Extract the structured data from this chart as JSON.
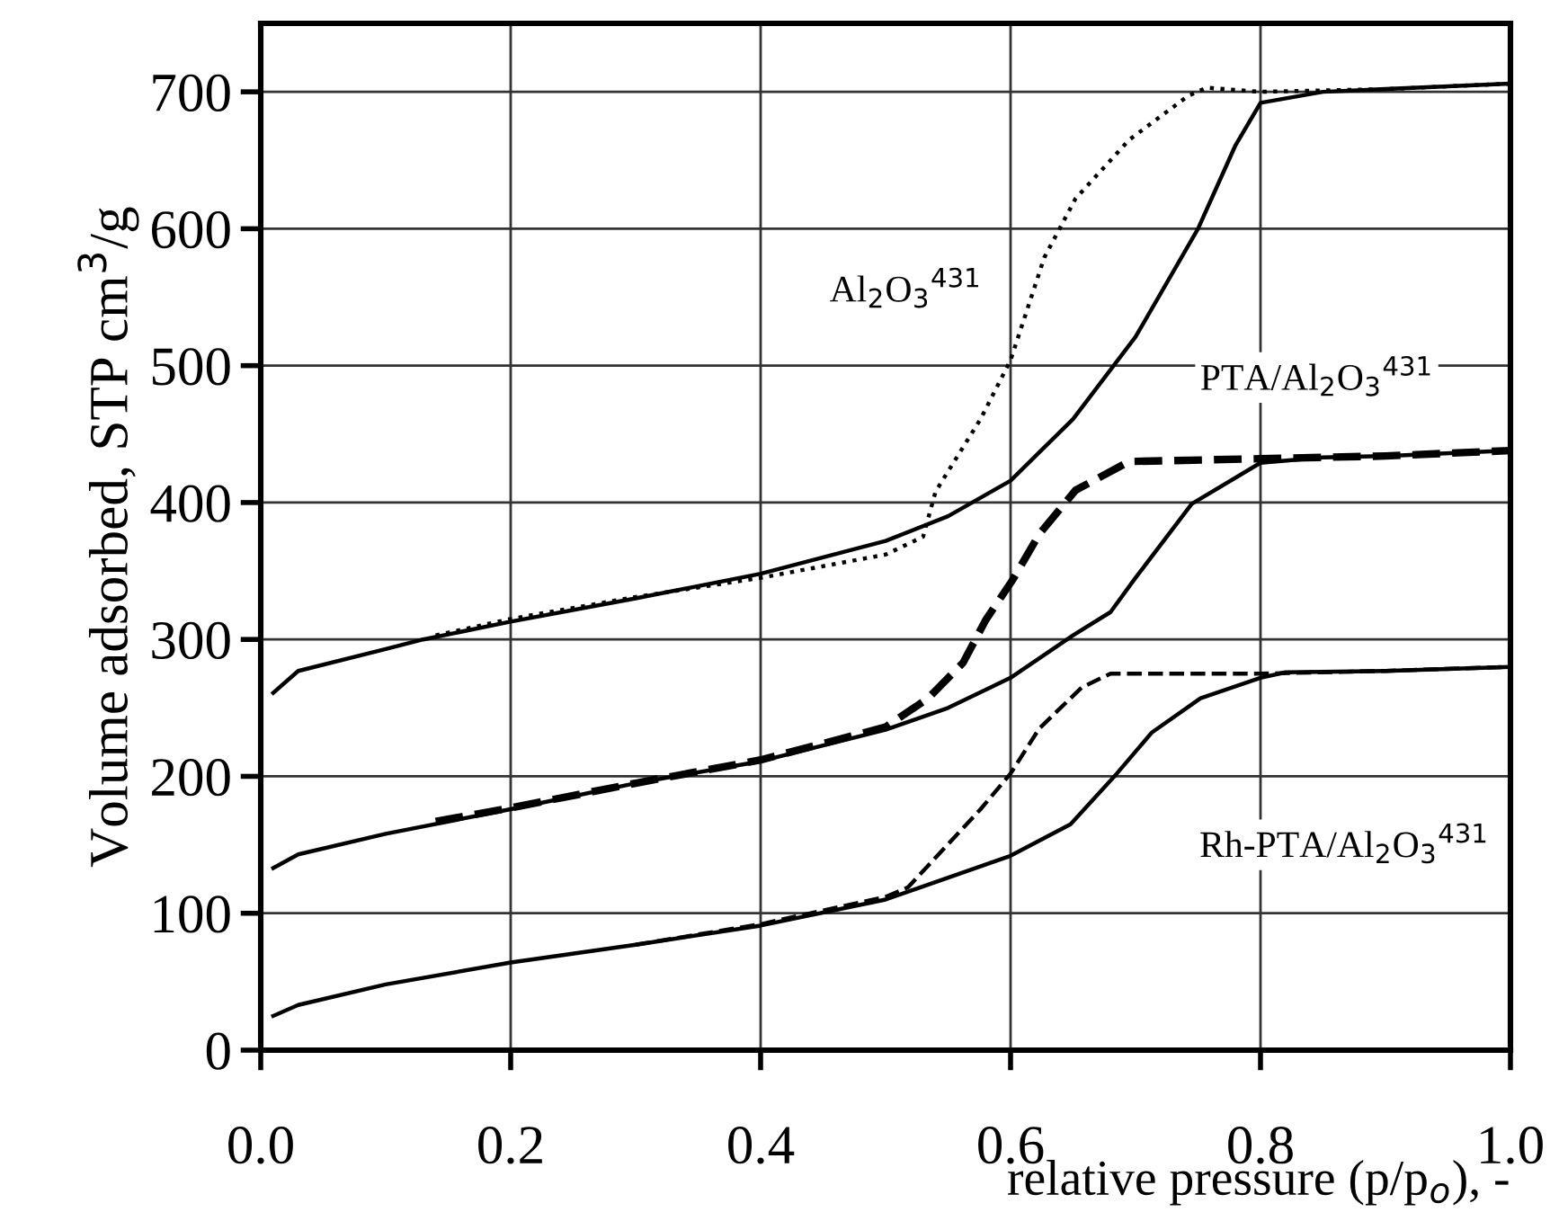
{
  "chart_data": {
    "type": "line",
    "xlabel": "relative pressure (p/p$_{o}$), -",
    "ylabel": "Volume adsorbed, STP cm$^{3}$/g",
    "xlim": [
      0,
      1
    ],
    "ylim": [
      0,
      750
    ],
    "xticks": [
      {
        "value": 0,
        "label": "0.0"
      },
      0.2,
      0.4,
      0.6,
      0.8,
      {
        "value": 1,
        "label": "1.0"
      }
    ],
    "yticks": [
      0,
      100,
      200,
      300,
      400,
      500,
      600,
      700
    ],
    "grid": true,
    "marker": "none",
    "series": [
      {
        "color": "#000000",
        "line_style": "solid",
        "x": [
          0.01,
          0.03,
          0.1,
          0.13,
          0.2,
          0.3,
          0.4,
          0.5,
          0.55,
          0.6,
          0.65,
          0.7,
          0.75,
          0.78,
          0.8,
          0.85,
          0.9,
          1.0
        ],
        "values": [
          261,
          277,
          293,
          300,
          313,
          330,
          348,
          372,
          390,
          416,
          461,
          521,
          600,
          661,
          692,
          700,
          702,
          706
        ]
      },
      {
        "color": "#000000",
        "line_style": "dotted",
        "x": [
          0.14,
          0.2,
          0.3,
          0.4,
          0.5,
          0.53,
          0.54,
          0.576,
          0.6,
          0.627,
          0.652,
          0.695,
          0.742,
          0.757,
          0.8,
          0.9,
          1.0
        ],
        "values": [
          303,
          315,
          331,
          345,
          362,
          375,
          408,
          461,
          504,
          579,
          622,
          665,
          697,
          703,
          700,
          702,
          706
        ]
      },
      {
        "color": "#000000",
        "line_style": "solid",
        "x": [
          0.01,
          0.03,
          0.1,
          0.2,
          0.3,
          0.4,
          0.5,
          0.55,
          0.6,
          0.65,
          0.68,
          0.7,
          0.745,
          0.8,
          0.85,
          0.9,
          1.0
        ],
        "values": [
          133,
          143,
          158,
          176,
          195,
          211,
          234,
          250,
          272,
          303,
          320,
          345,
          399,
          429,
          433,
          434,
          438
        ]
      },
      {
        "color": "#000000",
        "line_style": "dashed",
        "x": [
          0.14,
          0.2,
          0.3,
          0.4,
          0.5,
          0.534,
          0.562,
          0.58,
          0.602,
          0.623,
          0.652,
          0.695,
          0.8,
          0.9,
          1.0
        ],
        "values": [
          167,
          177,
          195,
          212,
          236,
          257,
          283,
          314,
          344,
          377,
          409,
          430,
          432,
          434,
          438
        ]
      },
      {
        "color": "#000000",
        "line_style": "solid",
        "x": [
          0.01,
          0.03,
          0.1,
          0.2,
          0.3,
          0.4,
          0.5,
          0.6,
          0.648,
          0.685,
          0.713,
          0.752,
          0.8,
          0.82,
          0.9,
          1.0
        ],
        "values": [
          25,
          33,
          48,
          64,
          77,
          91,
          110,
          142,
          165,
          202,
          232,
          257,
          272,
          276,
          277,
          280
        ]
      },
      {
        "color": "#000000",
        "line_style": "dashed",
        "x": [
          0.3,
          0.4,
          0.5,
          0.518,
          0.576,
          0.6,
          0.623,
          0.657,
          0.68,
          0.747,
          0.8,
          0.9,
          1.0
        ],
        "values": [
          77,
          92,
          112,
          119,
          176,
          202,
          235,
          265,
          275,
          275,
          275,
          277,
          280
        ]
      }
    ],
    "annotations": [
      "Al$_{2}$O$_{3}$$^{431}$",
      "PTA/Al$_{2}$O$_{3}$$^{431}$",
      "Rh-PTA/Al$_{2}$O$_{3}$$^{431}$"
    ]
  }
}
